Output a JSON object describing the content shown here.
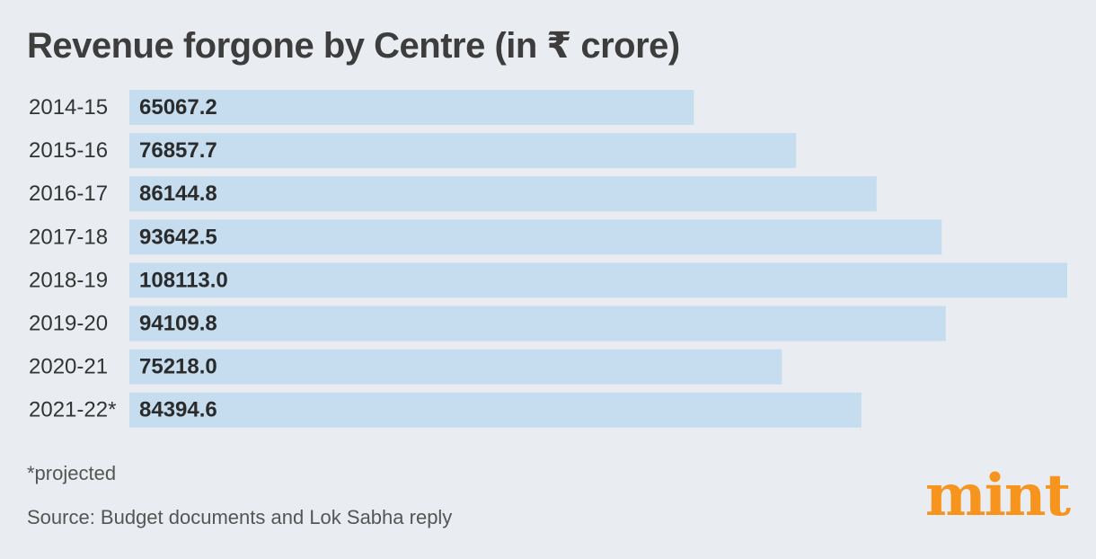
{
  "chart_data": {
    "type": "bar",
    "orientation": "horizontal",
    "title": "Revenue forgone by Centre (in ₹ crore)",
    "categories": [
      "2014-15",
      "2015-16",
      "2016-17",
      "2017-18",
      "2018-19",
      "2019-20",
      "2020-21",
      "2021-22*"
    ],
    "values": [
      65067.2,
      76857.7,
      86144.8,
      93642.5,
      108113.0,
      94109.8,
      75218.0,
      84394.6
    ],
    "value_labels": [
      "65067.2",
      "76857.7",
      "86144.8",
      "93642.5",
      "108113.0",
      "94109.8",
      "75218.0",
      "84394.6"
    ],
    "xlim": [
      0,
      108113.0
    ],
    "xlabel": "",
    "ylabel": "",
    "grid": false,
    "legend": "none",
    "bar_color": "#c5ddef"
  },
  "footer": {
    "note": "*projected",
    "source": "Source: Budget documents and Lok Sabha reply"
  },
  "brand": {
    "logo_text": "mint",
    "color": "#f7941d"
  },
  "colors": {
    "background": "#e9edf1",
    "title": "#3d3d3d",
    "bar": "#c5ddef"
  }
}
